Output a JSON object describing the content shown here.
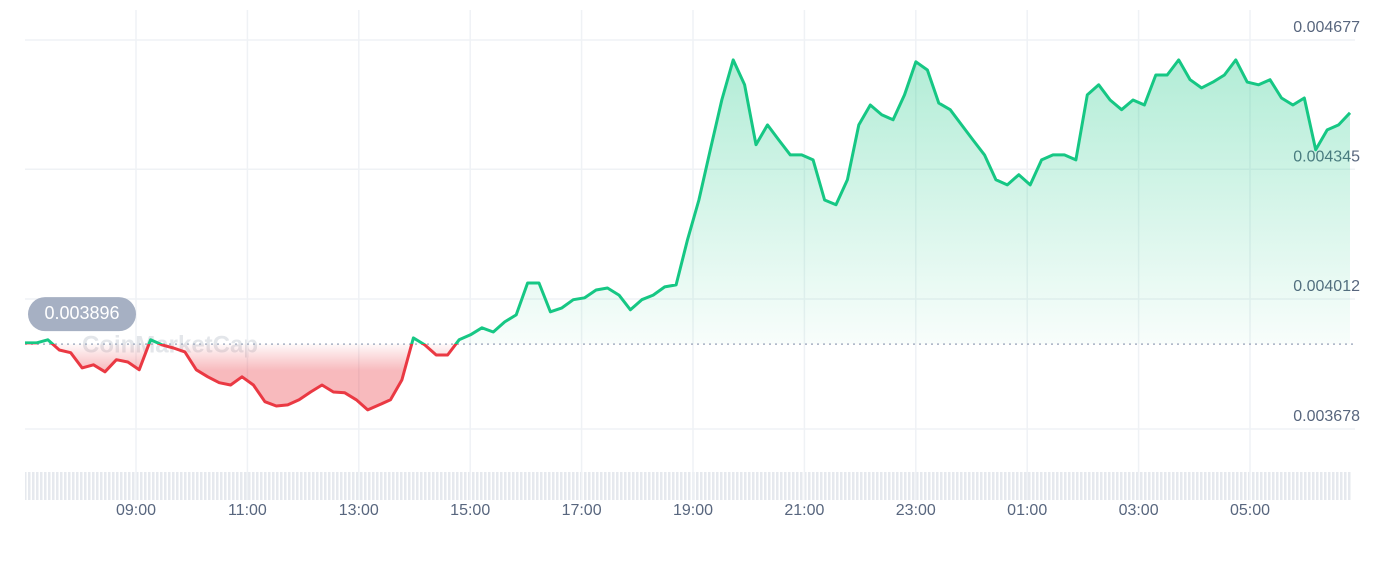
{
  "chart_data": {
    "type": "line",
    "watermark": "CoinMarketCap",
    "baseline": 0.003896,
    "up_color": "#16c784",
    "down_color": "#ea3943",
    "ylim": [
      0.003678,
      0.004677
    ],
    "yticks": [
      0.004677,
      0.004345,
      0.004012,
      0.003678
    ],
    "xticks": [
      "09:00",
      "11:00",
      "13:00",
      "15:00",
      "17:00",
      "19:00",
      "21:00",
      "23:00",
      "01:00",
      "03:00",
      "05:00"
    ],
    "grid": true,
    "values": [
      0.003899,
      0.003899,
      0.003907,
      0.003881,
      0.003874,
      0.003835,
      0.003843,
      0.003825,
      0.003856,
      0.00385,
      0.00383,
      0.003907,
      0.003894,
      0.003886,
      0.003876,
      0.00383,
      0.003812,
      0.003797,
      0.003791,
      0.003812,
      0.003791,
      0.003748,
      0.003737,
      0.00374,
      0.003753,
      0.003773,
      0.003791,
      0.003773,
      0.003771,
      0.003753,
      0.003727,
      0.00374,
      0.003753,
      0.003804,
      0.003912,
      0.003894,
      0.003868,
      0.003868,
      0.003907,
      0.00392,
      0.003938,
      0.003927,
      0.003953,
      0.003971,
      0.004053,
      0.004053,
      0.003979,
      0.003989,
      0.00401,
      0.004015,
      0.004035,
      0.00404,
      0.004022,
      0.003984,
      0.00401,
      0.004022,
      0.004043,
      0.004048,
      0.004164,
      0.004266,
      0.004395,
      0.004523,
      0.004626,
      0.004562,
      0.004408,
      0.004459,
      0.00442,
      0.004382,
      0.004382,
      0.004369,
      0.004266,
      0.004254,
      0.004318,
      0.004459,
      0.00451,
      0.004485,
      0.004472,
      0.004536,
      0.004621,
      0.0046,
      0.004515,
      0.004498,
      0.004459,
      0.00442,
      0.004382,
      0.004318,
      0.004305,
      0.004331,
      0.004305,
      0.004369,
      0.004382,
      0.004382,
      0.004369,
      0.004536,
      0.004562,
      0.004523,
      0.004498,
      0.004523,
      0.00451,
      0.004587,
      0.004587,
      0.004626,
      0.004575,
      0.004554,
      0.004569,
      0.004587,
      0.004626,
      0.004569,
      0.004562,
      0.004575,
      0.004528,
      0.00451,
      0.004528,
      0.004395,
      0.004446,
      0.004459,
      0.00449
    ]
  }
}
